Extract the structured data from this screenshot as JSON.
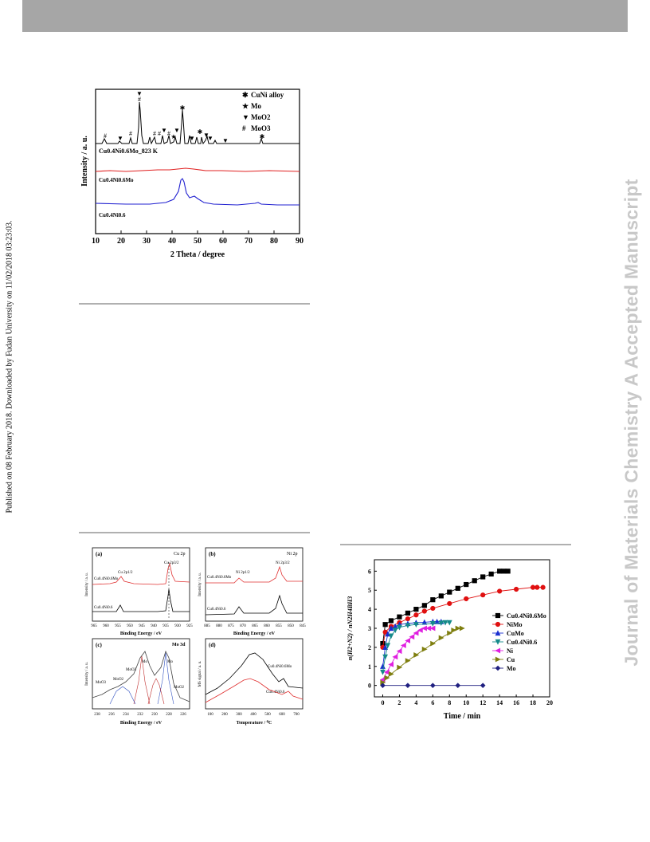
{
  "side_left_text": "Published on 08 February 2018. Downloaded by Fudan University on 11/02/2018 03:23:03.",
  "side_right_text": "Journal of Materials Chemistry A Accepted Manuscript",
  "xrd": {
    "ylabel": "Intensity / a. u.",
    "xlabel": "2 Theta / degree",
    "xticks": [
      "10",
      "20",
      "30",
      "40",
      "50",
      "60",
      "70",
      "80",
      "90"
    ],
    "legend": [
      {
        "symbol": "✱",
        "label": "CuNi alloy"
      },
      {
        "symbol": "★",
        "label": "Mo"
      },
      {
        "symbol": "▼",
        "label": "MoO2"
      },
      {
        "symbol": "#",
        "label": "MoO3"
      }
    ],
    "traces": [
      {
        "label": "Cu0.4Ni0.6Mo_823 K",
        "color": "#000000"
      },
      {
        "label": "Cu0.4Ni0.6Mo",
        "color": "#e02020"
      },
      {
        "label": "Cu0.4Ni0.6",
        "color": "#2020d0"
      }
    ]
  },
  "xps": {
    "a": {
      "tag": "(a)",
      "title": "Cu 2p",
      "peak1": "Cu 2p1/2",
      "peak2": "Cu 2p3/2",
      "top": "Cu0.4Ni0.6Mo",
      "bottom": "Cu0.4Ni0.6",
      "xlabel": "Binding Energy / eV",
      "ylabel": "Intensity / a. u.",
      "xticks": [
        "965",
        "960",
        "955",
        "950",
        "945",
        "940",
        "935",
        "930",
        "925"
      ]
    },
    "b": {
      "tag": "(b)",
      "title": "Ni 2p",
      "peak1": "Ni 2p1/2",
      "peak2": "Ni 2p3/2",
      "top": "Cu0.4Ni0.6Mo",
      "bottom": "Cu0.4Ni0.6",
      "xlabel": "Binding Energy / eV",
      "ylabel": "Intensity / a. u.",
      "xticks": [
        "885",
        "880",
        "875",
        "870",
        "865",
        "860",
        "855",
        "850",
        "845"
      ]
    },
    "c": {
      "tag": "(c)",
      "title": "Mo 3d",
      "labels": [
        "MoO3",
        "MoO2",
        "MoO3",
        "Mo",
        "Mo",
        "MoO2"
      ],
      "xlabel": "Binding Energy / eV",
      "ylabel": "Intensity / a. u.",
      "xticks": [
        "238",
        "236",
        "234",
        "232",
        "230",
        "228",
        "226"
      ]
    },
    "d": {
      "tag": "(d)",
      "top": "Cu0.4Ni0.6Mo",
      "bottom": "Cu0.4Ni0.6",
      "xlabel": "Temperature / ⁰C",
      "ylabel": "MS signal / a. u.",
      "xticks": [
        "100",
        "200",
        "300",
        "400",
        "500",
        "600",
        "700"
      ]
    }
  },
  "chart_data": {
    "type": "line",
    "xlabel": "Time / min",
    "ylabel": "n(H2+N2) / nN2H4BH3",
    "xlim": [
      -1,
      20
    ],
    "ylim": [
      -0.6,
      6.6
    ],
    "xticks": [
      0,
      2,
      4,
      6,
      8,
      10,
      12,
      14,
      16,
      18,
      20
    ],
    "yticks": [
      0,
      1,
      2,
      3,
      4,
      5,
      6
    ],
    "legend_position": "right",
    "series": [
      {
        "name": "Cu0.4Ni0.6Mo",
        "color": "#000000",
        "marker": "square",
        "x": [
          0,
          0.3,
          1,
          2,
          3,
          4,
          5,
          6,
          7,
          8,
          9,
          10,
          11,
          12,
          13,
          14,
          14.5,
          15
        ],
        "y": [
          2.2,
          3.2,
          3.4,
          3.6,
          3.8,
          4.0,
          4.2,
          4.5,
          4.7,
          4.9,
          5.1,
          5.3,
          5.5,
          5.7,
          5.85,
          6.0,
          6.0,
          6.0
        ]
      },
      {
        "name": "NiMo",
        "color": "#e01010",
        "marker": "circle",
        "x": [
          0,
          0.3,
          1,
          2,
          3,
          4,
          5,
          6,
          8,
          10,
          12,
          14,
          16,
          18,
          18.5,
          19.2
        ],
        "y": [
          2.0,
          2.8,
          3.1,
          3.3,
          3.5,
          3.7,
          3.9,
          4.05,
          4.3,
          4.55,
          4.75,
          4.95,
          5.05,
          5.15,
          5.15,
          5.15
        ]
      },
      {
        "name": "CuMo",
        "color": "#1a2fd0",
        "marker": "triangle-up",
        "x": [
          0,
          0.3,
          0.6,
          1,
          1.5,
          2,
          3,
          4,
          5,
          6,
          6.5,
          7
        ],
        "y": [
          1.0,
          2.0,
          2.7,
          3.0,
          3.1,
          3.2,
          3.25,
          3.3,
          3.32,
          3.35,
          3.35,
          3.35
        ]
      },
      {
        "name": "Cu0.4Ni0.6",
        "color": "#158a8a",
        "marker": "triangle-down",
        "x": [
          0,
          0.3,
          0.6,
          1,
          1.5,
          2,
          3,
          4,
          6,
          7,
          7.5,
          8
        ],
        "y": [
          0.7,
          1.5,
          2.1,
          2.6,
          2.9,
          3.05,
          3.15,
          3.2,
          3.25,
          3.28,
          3.3,
          3.3
        ]
      },
      {
        "name": "Ni",
        "color": "#e020e0",
        "marker": "triangle-left",
        "x": [
          0,
          0.5,
          1,
          1.5,
          2,
          2.5,
          3,
          3.5,
          4,
          4.5,
          5,
          5.5,
          6
        ],
        "y": [
          0.3,
          0.7,
          1.1,
          1.5,
          1.8,
          2.1,
          2.35,
          2.55,
          2.75,
          2.9,
          3.0,
          3.0,
          3.0
        ]
      },
      {
        "name": "Cu",
        "color": "#7f7f10",
        "marker": "triangle-right",
        "x": [
          0,
          0.5,
          1,
          2,
          3,
          4,
          5,
          6,
          7,
          8,
          8.5,
          9,
          9.5
        ],
        "y": [
          0.15,
          0.4,
          0.6,
          0.95,
          1.3,
          1.6,
          1.9,
          2.2,
          2.5,
          2.75,
          2.9,
          3.0,
          3.0
        ]
      },
      {
        "name": "Mo",
        "color": "#202080",
        "marker": "diamond",
        "x": [
          0,
          3,
          6,
          9,
          12
        ],
        "y": [
          0,
          0,
          0,
          0,
          0
        ]
      }
    ]
  }
}
